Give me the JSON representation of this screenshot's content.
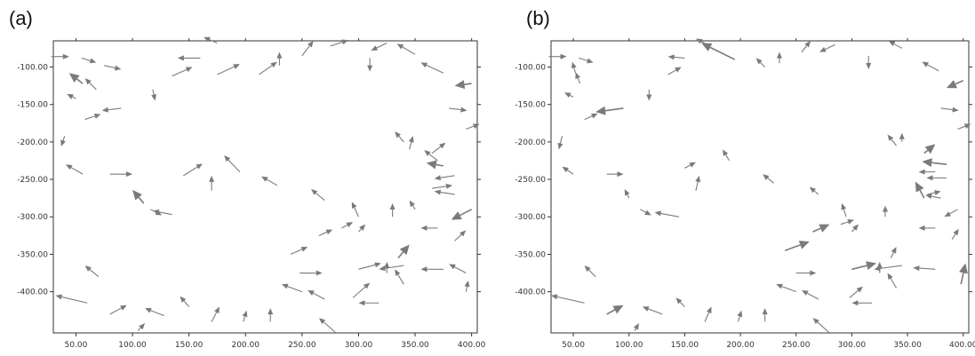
{
  "chart_data": [
    {
      "type": "quiver",
      "panel_label": "(a)",
      "xlim": [
        30,
        405
      ],
      "ylim": [
        -455,
        -65
      ],
      "x_ticks": [
        50,
        100,
        150,
        200,
        250,
        300,
        350,
        400
      ],
      "x_tick_labels": [
        "50.00",
        "100.00",
        "150.00",
        "200.00",
        "250.00",
        "300.00",
        "350.00",
        "400.00"
      ],
      "y_ticks": [
        -100,
        -150,
        -200,
        -250,
        -300,
        -350,
        -400
      ],
      "y_tick_labels": [
        "-100.00",
        "-150.00",
        "-200.00",
        "-250.00",
        "-300.00",
        "-350.00",
        "-400.00"
      ],
      "arrow_color": "#7a7a7a",
      "vectors": [
        {
          "x": 28,
          "y": -86,
          "u": 16,
          "v": 0,
          "h": 1
        },
        {
          "x": 55,
          "y": -88,
          "u": 13,
          "v": -6,
          "h": 1
        },
        {
          "x": 75,
          "y": -98,
          "u": 15,
          "v": -5,
          "h": 1
        },
        {
          "x": 56,
          "y": -122,
          "u": -12,
          "v": 14,
          "h": 2
        },
        {
          "x": 68,
          "y": -130,
          "u": -10,
          "v": 15,
          "h": 1
        },
        {
          "x": 50,
          "y": -142,
          "u": -8,
          "v": 6,
          "h": 1
        },
        {
          "x": 58,
          "y": -170,
          "u": 14,
          "v": 7,
          "h": 1
        },
        {
          "x": 90,
          "y": -155,
          "u": -17,
          "v": -3,
          "h": 1
        },
        {
          "x": 40,
          "y": -192,
          "u": -3,
          "v": -14,
          "h": 1
        },
        {
          "x": 56,
          "y": -243,
          "u": -15,
          "v": 13,
          "h": 1
        },
        {
          "x": 80,
          "y": -243,
          "u": 20,
          "v": 0,
          "h": 1
        },
        {
          "x": 110,
          "y": -282,
          "u": -10,
          "v": 18,
          "h": 2
        },
        {
          "x": 116,
          "y": -290,
          "u": 10,
          "v": -8,
          "h": 1
        },
        {
          "x": 135,
          "y": -297,
          "u": -17,
          "v": 5,
          "h": 1
        },
        {
          "x": 118,
          "y": -130,
          "u": 2,
          "v": -15,
          "h": 1
        },
        {
          "x": 135,
          "y": -112,
          "u": 18,
          "v": 12,
          "h": 1
        },
        {
          "x": 160,
          "y": -88,
          "u": -20,
          "v": 0,
          "h": 1
        },
        {
          "x": 175,
          "y": -110,
          "u": 20,
          "v": 14,
          "h": 1
        },
        {
          "x": 175,
          "y": -68,
          "u": -12,
          "v": 8,
          "h": 1
        },
        {
          "x": 212,
          "y": -110,
          "u": 16,
          "v": 17,
          "h": 1
        },
        {
          "x": 230,
          "y": -98,
          "u": 0,
          "v": 18,
          "h": 1
        },
        {
          "x": 250,
          "y": -85,
          "u": 10,
          "v": 20,
          "h": 1
        },
        {
          "x": 275,
          "y": -72,
          "u": 16,
          "v": 8,
          "h": 1
        },
        {
          "x": 310,
          "y": -88,
          "u": 0,
          "v": -18,
          "h": 1
        },
        {
          "x": 325,
          "y": -68,
          "u": -14,
          "v": -10,
          "h": 1
        },
        {
          "x": 350,
          "y": -83,
          "u": -16,
          "v": 14,
          "h": 1
        },
        {
          "x": 375,
          "y": -108,
          "u": -20,
          "v": 14,
          "h": 1
        },
        {
          "x": 400,
          "y": -122,
          "u": -15,
          "v": -3,
          "h": 2
        },
        {
          "x": 380,
          "y": -155,
          "u": 16,
          "v": -3,
          "h": 1
        },
        {
          "x": 395,
          "y": -183,
          "u": 12,
          "v": 7,
          "h": 1
        },
        {
          "x": 145,
          "y": -245,
          "u": 17,
          "v": 16,
          "h": 1
        },
        {
          "x": 170,
          "y": -265,
          "u": 0,
          "v": 20,
          "h": 1
        },
        {
          "x": 195,
          "y": -240,
          "u": -14,
          "v": 22,
          "h": 1
        },
        {
          "x": 228,
          "y": -258,
          "u": -14,
          "v": 12,
          "h": 1
        },
        {
          "x": 270,
          "y": -278,
          "u": -12,
          "v": 15,
          "h": 1
        },
        {
          "x": 215,
          "y": -295,
          "u": 0,
          "v": 0,
          "h": 0
        },
        {
          "x": 340,
          "y": -200,
          "u": -8,
          "v": 14,
          "h": 1
        },
        {
          "x": 345,
          "y": -210,
          "u": 3,
          "v": 18,
          "h": 1
        },
        {
          "x": 365,
          "y": -215,
          "u": 12,
          "v": 14,
          "h": 1
        },
        {
          "x": 370,
          "y": -225,
          "u": -12,
          "v": 14,
          "h": 1
        },
        {
          "x": 375,
          "y": -232,
          "u": -15,
          "v": 4,
          "h": 2
        },
        {
          "x": 385,
          "y": -245,
          "u": -18,
          "v": -4,
          "h": 1
        },
        {
          "x": 365,
          "y": -262,
          "u": 18,
          "v": 4,
          "h": 1
        },
        {
          "x": 385,
          "y": -270,
          "u": -18,
          "v": 4,
          "h": 1
        },
        {
          "x": 400,
          "y": -290,
          "u": -18,
          "v": -14,
          "h": 2
        },
        {
          "x": 300,
          "y": -300,
          "u": -6,
          "v": 20,
          "h": 1
        },
        {
          "x": 330,
          "y": -300,
          "u": 0,
          "v": 18,
          "h": 1
        },
        {
          "x": 350,
          "y": -290,
          "u": -5,
          "v": 12,
          "h": 1
        },
        {
          "x": 285,
          "y": -315,
          "u": 10,
          "v": 8,
          "h": 1
        },
        {
          "x": 265,
          "y": -325,
          "u": 12,
          "v": 8,
          "h": 1
        },
        {
          "x": 240,
          "y": -350,
          "u": 15,
          "v": 10,
          "h": 1
        },
        {
          "x": 300,
          "y": -320,
          "u": 6,
          "v": 10,
          "h": 1
        },
        {
          "x": 370,
          "y": -315,
          "u": -15,
          "v": 0,
          "h": 1
        },
        {
          "x": 385,
          "y": -332,
          "u": 10,
          "v": 14,
          "h": 1
        },
        {
          "x": 335,
          "y": -355,
          "u": 10,
          "v": 18,
          "h": 2
        },
        {
          "x": 300,
          "y": -370,
          "u": 20,
          "v": 8,
          "h": 1
        },
        {
          "x": 340,
          "y": -365,
          "u": -22,
          "v": -5,
          "h": 1
        },
        {
          "x": 375,
          "y": -370,
          "u": -20,
          "v": 0,
          "h": 1
        },
        {
          "x": 395,
          "y": -375,
          "u": -15,
          "v": 12,
          "h": 1
        },
        {
          "x": 325,
          "y": -375,
          "u": 0,
          "v": 15,
          "h": 1
        },
        {
          "x": 340,
          "y": -390,
          "u": -8,
          "v": 20,
          "h": 1
        },
        {
          "x": 248,
          "y": -375,
          "u": 20,
          "v": 0,
          "h": 1
        },
        {
          "x": 250,
          "y": -400,
          "u": -18,
          "v": 10,
          "h": 1
        },
        {
          "x": 270,
          "y": -410,
          "u": -15,
          "v": 12,
          "h": 1
        },
        {
          "x": 295,
          "y": -408,
          "u": 15,
          "v": 20,
          "h": 1
        },
        {
          "x": 318,
          "y": -415,
          "u": -18,
          "v": 0,
          "h": 1
        },
        {
          "x": 395,
          "y": -400,
          "u": 2,
          "v": 15,
          "h": 1
        },
        {
          "x": 70,
          "y": -380,
          "u": -12,
          "v": 15,
          "h": 1
        },
        {
          "x": 60,
          "y": -415,
          "u": -28,
          "v": 10,
          "h": 1
        },
        {
          "x": 80,
          "y": -430,
          "u": 15,
          "v": 12,
          "h": 1
        },
        {
          "x": 128,
          "y": -432,
          "u": -17,
          "v": 10,
          "h": 1
        },
        {
          "x": 143,
          "y": -425,
          "u": 0,
          "v": 0,
          "h": 0
        },
        {
          "x": 150,
          "y": -420,
          "u": -8,
          "v": 14,
          "h": 1
        },
        {
          "x": 170,
          "y": -440,
          "u": 7,
          "v": 20,
          "h": 1
        },
        {
          "x": 198,
          "y": -440,
          "u": 3,
          "v": 15,
          "h": 1
        },
        {
          "x": 222,
          "y": -440,
          "u": 0,
          "v": 18,
          "h": 1
        },
        {
          "x": 280,
          "y": -455,
          "u": -15,
          "v": 20,
          "h": 1
        },
        {
          "x": 105,
          "y": -452,
          "u": 6,
          "v": 10,
          "h": 1
        }
      ]
    },
    {
      "type": "quiver",
      "panel_label": "(b)",
      "xlim": [
        30,
        405
      ],
      "ylim": [
        -455,
        -65
      ],
      "x_ticks": [
        50,
        100,
        150,
        200,
        250,
        300,
        350,
        400
      ],
      "x_tick_labels": [
        "50.00",
        "100.00",
        "150.00",
        "200.00",
        "250.00",
        "300.00",
        "350.00",
        "400.00"
      ],
      "y_ticks": [
        -100,
        -150,
        -200,
        -250,
        -300,
        -350,
        -400
      ],
      "y_tick_labels": [
        "-100.00",
        "-150.00",
        "-200.00",
        "-250.00",
        "-300.00",
        "-350.00",
        "-400.00"
      ],
      "arrow_color": "#7a7a7a",
      "vectors": [
        {
          "x": 28,
          "y": -86,
          "u": 16,
          "v": 0,
          "h": 1
        },
        {
          "x": 55,
          "y": -88,
          "u": 13,
          "v": -6,
          "h": 1
        },
        {
          "x": 52,
          "y": -108,
          "u": -3,
          "v": 15,
          "h": 1
        },
        {
          "x": 56,
          "y": -122,
          "u": -4,
          "v": 15,
          "h": 1
        },
        {
          "x": 50,
          "y": -140,
          "u": -8,
          "v": 6,
          "h": 1
        },
        {
          "x": 60,
          "y": -170,
          "u": 12,
          "v": 8,
          "h": 1
        },
        {
          "x": 95,
          "y": -155,
          "u": -25,
          "v": -5,
          "h": 2
        },
        {
          "x": 40,
          "y": -192,
          "u": -3,
          "v": -18,
          "h": 1
        },
        {
          "x": 50,
          "y": -243,
          "u": -10,
          "v": 10,
          "h": 1
        },
        {
          "x": 80,
          "y": -243,
          "u": 15,
          "v": 0,
          "h": 1
        },
        {
          "x": 100,
          "y": -275,
          "u": -4,
          "v": 12,
          "h": 1
        },
        {
          "x": 110,
          "y": -290,
          "u": 10,
          "v": -8,
          "h": 1
        },
        {
          "x": 145,
          "y": -300,
          "u": -22,
          "v": 6,
          "h": 1
        },
        {
          "x": 118,
          "y": -130,
          "u": 0,
          "v": -15,
          "h": 1
        },
        {
          "x": 135,
          "y": -110,
          "u": 12,
          "v": 10,
          "h": 1
        },
        {
          "x": 150,
          "y": -88,
          "u": -15,
          "v": 2,
          "h": 1
        },
        {
          "x": 195,
          "y": -90,
          "u": -30,
          "v": 22,
          "h": 2
        },
        {
          "x": 170,
          "y": -70,
          "u": -10,
          "v": 8,
          "h": 1
        },
        {
          "x": 222,
          "y": -100,
          "u": -8,
          "v": 12,
          "h": 1
        },
        {
          "x": 235,
          "y": -95,
          "u": 0,
          "v": 15,
          "h": 1
        },
        {
          "x": 255,
          "y": -80,
          "u": 8,
          "v": 15,
          "h": 1
        },
        {
          "x": 285,
          "y": -70,
          "u": -14,
          "v": -10,
          "h": 1
        },
        {
          "x": 315,
          "y": -85,
          "u": 0,
          "v": -18,
          "h": 1
        },
        {
          "x": 345,
          "y": -75,
          "u": -12,
          "v": 10,
          "h": 1
        },
        {
          "x": 378,
          "y": -105,
          "u": -15,
          "v": 12,
          "h": 1
        },
        {
          "x": 400,
          "y": -118,
          "u": -15,
          "v": -10,
          "h": 2
        },
        {
          "x": 380,
          "y": -155,
          "u": 16,
          "v": -3,
          "h": 1
        },
        {
          "x": 395,
          "y": -183,
          "u": 12,
          "v": 7,
          "h": 1
        },
        {
          "x": 150,
          "y": -235,
          "u": 10,
          "v": 8,
          "h": 1
        },
        {
          "x": 160,
          "y": -265,
          "u": 3,
          "v": 20,
          "h": 1
        },
        {
          "x": 190,
          "y": -225,
          "u": -6,
          "v": 15,
          "h": 1
        },
        {
          "x": 230,
          "y": -255,
          "u": -10,
          "v": 12,
          "h": 1
        },
        {
          "x": 270,
          "y": -270,
          "u": -8,
          "v": 10,
          "h": 1
        },
        {
          "x": 340,
          "y": -205,
          "u": -8,
          "v": 15,
          "h": 1
        },
        {
          "x": 345,
          "y": -200,
          "u": 0,
          "v": 12,
          "h": 1
        },
        {
          "x": 365,
          "y": -215,
          "u": 10,
          "v": 12,
          "h": 2
        },
        {
          "x": 385,
          "y": -230,
          "u": -22,
          "v": 4,
          "h": 2
        },
        {
          "x": 375,
          "y": -240,
          "u": -15,
          "v": 0,
          "h": 1
        },
        {
          "x": 385,
          "y": -248,
          "u": -18,
          "v": 0,
          "h": 1
        },
        {
          "x": 368,
          "y": -270,
          "u": 12,
          "v": 4,
          "h": 1
        },
        {
          "x": 380,
          "y": -275,
          "u": -14,
          "v": 4,
          "h": 1
        },
        {
          "x": 395,
          "y": -290,
          "u": -12,
          "v": -10,
          "h": 1
        },
        {
          "x": 295,
          "y": -300,
          "u": -4,
          "v": 18,
          "h": 1
        },
        {
          "x": 330,
          "y": -300,
          "u": 0,
          "v": 15,
          "h": 1
        },
        {
          "x": 365,
          "y": -275,
          "u": -8,
          "v": 22,
          "h": 2
        },
        {
          "x": 290,
          "y": -310,
          "u": 12,
          "v": 6,
          "h": 1
        },
        {
          "x": 265,
          "y": -320,
          "u": 15,
          "v": 10,
          "h": 2
        },
        {
          "x": 240,
          "y": -345,
          "u": 22,
          "v": 12,
          "h": 2
        },
        {
          "x": 300,
          "y": -320,
          "u": 6,
          "v": 10,
          "h": 1
        },
        {
          "x": 375,
          "y": -315,
          "u": -15,
          "v": 0,
          "h": 1
        },
        {
          "x": 390,
          "y": -330,
          "u": 6,
          "v": 14,
          "h": 1
        },
        {
          "x": 335,
          "y": -355,
          "u": 5,
          "v": 15,
          "h": 1
        },
        {
          "x": 300,
          "y": -370,
          "u": 22,
          "v": 8,
          "h": 2
        },
        {
          "x": 345,
          "y": -365,
          "u": -25,
          "v": -5,
          "h": 1
        },
        {
          "x": 375,
          "y": -370,
          "u": -20,
          "v": 2,
          "h": 1
        },
        {
          "x": 325,
          "y": -375,
          "u": 0,
          "v": 15,
          "h": 1
        },
        {
          "x": 340,
          "y": -395,
          "u": -8,
          "v": 20,
          "h": 1
        },
        {
          "x": 250,
          "y": -375,
          "u": 18,
          "v": 0,
          "h": 1
        },
        {
          "x": 250,
          "y": -400,
          "u": -18,
          "v": 10,
          "h": 1
        },
        {
          "x": 270,
          "y": -410,
          "u": -15,
          "v": 12,
          "h": 1
        },
        {
          "x": 298,
          "y": -408,
          "u": 12,
          "v": 15,
          "h": 1
        },
        {
          "x": 318,
          "y": -415,
          "u": -18,
          "v": 0,
          "h": 1
        },
        {
          "x": 398,
          "y": -390,
          "u": 4,
          "v": 28,
          "h": 2
        },
        {
          "x": 70,
          "y": -380,
          "u": -10,
          "v": 15,
          "h": 1
        },
        {
          "x": 60,
          "y": -415,
          "u": -30,
          "v": 10,
          "h": 1
        },
        {
          "x": 80,
          "y": -430,
          "u": 15,
          "v": 12,
          "h": 2
        },
        {
          "x": 130,
          "y": -430,
          "u": -18,
          "v": 10,
          "h": 1
        },
        {
          "x": 150,
          "y": -420,
          "u": -8,
          "v": 12,
          "h": 1
        },
        {
          "x": 168,
          "y": -440,
          "u": 6,
          "v": 20,
          "h": 1
        },
        {
          "x": 198,
          "y": -440,
          "u": 3,
          "v": 15,
          "h": 1
        },
        {
          "x": 222,
          "y": -440,
          "u": 0,
          "v": 18,
          "h": 1
        },
        {
          "x": 280,
          "y": -455,
          "u": -15,
          "v": 20,
          "h": 1
        },
        {
          "x": 105,
          "y": -452,
          "u": 4,
          "v": 10,
          "h": 1
        }
      ]
    }
  ]
}
